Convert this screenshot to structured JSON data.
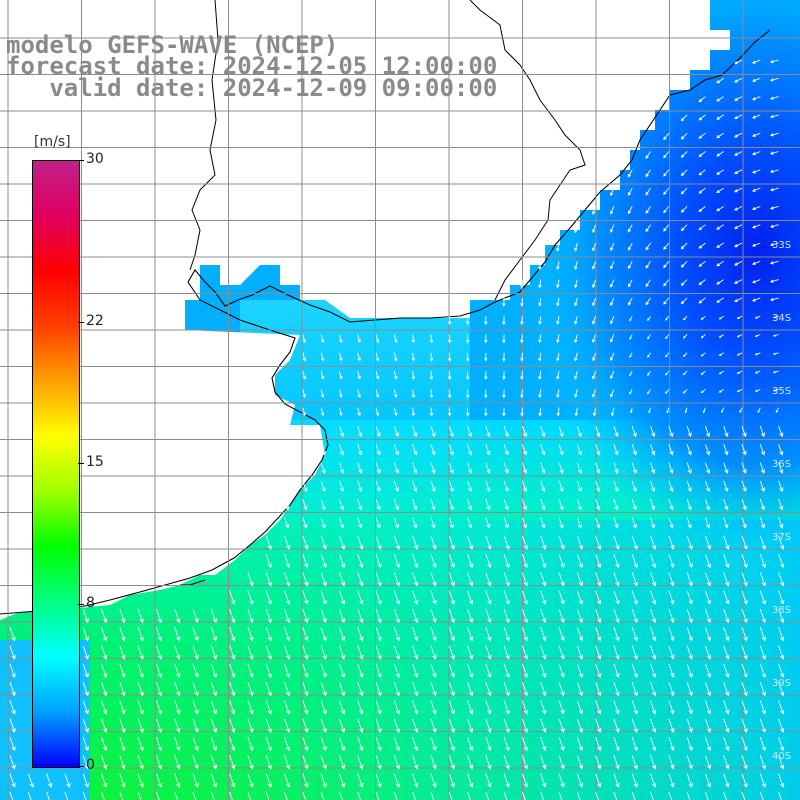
{
  "title": {
    "line1": "modelo GEFS-WAVE (NCEP)",
    "line2": "forecast date: 2024-12-05 12:00:00",
    "line3": "   valid date: 2024-12-09 09:00:00"
  },
  "colorbar": {
    "units": "[m/s]",
    "min": 0,
    "max": 30,
    "ticks": [
      "30",
      "22",
      "15",
      "8",
      "0"
    ],
    "tick_values": [
      30,
      22,
      15,
      8,
      0
    ],
    "colors": [
      "#0000ff",
      "#00a0ff",
      "#00ffff",
      "#00ff80",
      "#00ff00",
      "#a0ff00",
      "#ffff00",
      "#ffa000",
      "#ff4000",
      "#ff0000",
      "#e00060",
      "#c0208a"
    ]
  },
  "map": {
    "lat_labels": [
      "33S",
      "34S",
      "35S",
      "36S",
      "37S",
      "38S",
      "39S",
      "40S"
    ],
    "land_color": "#ffffff",
    "grid_color": "#8c8c8c",
    "coast_color": "#000000",
    "arrow_color": "#ffffff"
  }
}
